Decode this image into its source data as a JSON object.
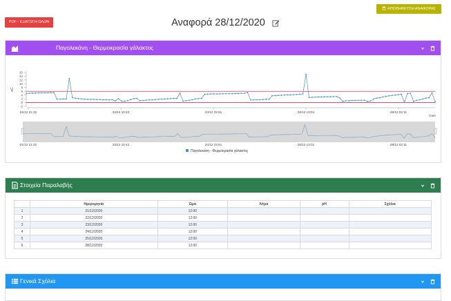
{
  "toolbar": {
    "pdf_export_label": "PDF - ΕΞΑΓΩΓΗ ΟΛΩΝ",
    "save_report_label": "ΑΠΟΘΗΚΕΥΣΗ ΑΝΑΦΟΡΑΣ"
  },
  "report": {
    "title": "Αναφορά 28/12/2020"
  },
  "chart_panel": {
    "title": "Παγολεκάνη - Θερμοκρασία γάλακτος",
    "color": "#a24ff1",
    "icon": "area-chart-icon"
  },
  "chart_data": {
    "type": "line",
    "ylabel": "oC",
    "xlabel": "Date",
    "yticks": [
      -2,
      0,
      2,
      4,
      6,
      8,
      10,
      12,
      14,
      16
    ],
    "ylim": [
      -2,
      16
    ],
    "xticks": [
      "21/12 21:32",
      "23/12 10:42",
      "24/12 23:51",
      "26/12 13:01",
      "28/12 02:11"
    ],
    "navigator_xticks": [
      "21/12 21:32",
      "23/12 10:42",
      "24/12 23:51",
      "26/12 13:01",
      "28/12 02:11"
    ],
    "thresholds": [
      {
        "value": 6,
        "color": "#e0325a"
      },
      {
        "value": 0,
        "color": "#e0325a"
      }
    ],
    "legend": {
      "position": "bottom-center"
    },
    "series": [
      {
        "name": "Παγολεκάνη - Θερμοκρασία γάλακτος",
        "color": "#4a90c8",
        "values": [
          4.8,
          4.9,
          5,
          5,
          5.1,
          5.1,
          5.2,
          5.2,
          5.3,
          5.3,
          1.8,
          1.8,
          1.9,
          1.9,
          12.8,
          2.6,
          2.3,
          2.1,
          1.9,
          1.8,
          1.7,
          1.7,
          1.7,
          1.6,
          1.6,
          1.5,
          1.5,
          1.4,
          1.5,
          0.9,
          2.1,
          0.8,
          0.7,
          1.1,
          1.6,
          2.1,
          2.2,
          1,
          1.1,
          1.3,
          1.4,
          1.5,
          1.6,
          1.7,
          1.8,
          1.9,
          2,
          2.1,
          2.2,
          2.2,
          5,
          0.8,
          1,
          1.2,
          1.5,
          1.9,
          2.1,
          2.2,
          4.4,
          4.5,
          4.6,
          4.6,
          4.6,
          4.6,
          4.7,
          4.7,
          4.7,
          4.7,
          4.8,
          4.8,
          4.9,
          4.9,
          5.3,
          1.4,
          1.4,
          1.5,
          1.5,
          1.6,
          1.7,
          1.8,
          3.6,
          3.7,
          3.8,
          3.9,
          4,
          4.1,
          4.1,
          4.2,
          4.3,
          4.4,
          4.6,
          15,
          2.7,
          2.8,
          2.9,
          3,
          3,
          3.1,
          3.1,
          3.1,
          3.2,
          3.2,
          2.4,
          0.6,
          1,
          1,
          1.1,
          1.1,
          1.2,
          1.2,
          1.3,
          0.6,
          0.8,
          1.9,
          2.4,
          2.6,
          3,
          3.3,
          3.6,
          3.8,
          4,
          4.2,
          4.4,
          0.1,
          4.8,
          4.9,
          0.6,
          1.2,
          1.5,
          1.9,
          2.3,
          2.6,
          5.1,
          0.4
        ]
      }
    ]
  },
  "reception_panel": {
    "title": "Στοιχεία Παραλαβής",
    "color": "#2e7d4f",
    "icon": "document-icon",
    "columns": [
      "",
      "Ημερομηνία",
      "Ώρα",
      "Λίτρα",
      "pH",
      "Σχόλια"
    ],
    "rows": [
      [
        "1",
        "21/12/2020",
        "12:00",
        "",
        "",
        ""
      ],
      [
        "2",
        "22/12/2020",
        "12:00",
        "",
        "",
        ""
      ],
      [
        "3",
        "23/12/2020",
        "12:00",
        "",
        "",
        ""
      ],
      [
        "4",
        "24/12/2020",
        "12:00",
        "",
        "",
        ""
      ],
      [
        "5",
        "25/12/2020",
        "12:00",
        "",
        "",
        ""
      ],
      [
        "6",
        "28/12/2020",
        "12:00",
        "",
        "",
        ""
      ]
    ]
  },
  "comments_panel": {
    "title": "Γενικά Σχόλια",
    "color": "#2196f3",
    "icon": "list-icon"
  }
}
